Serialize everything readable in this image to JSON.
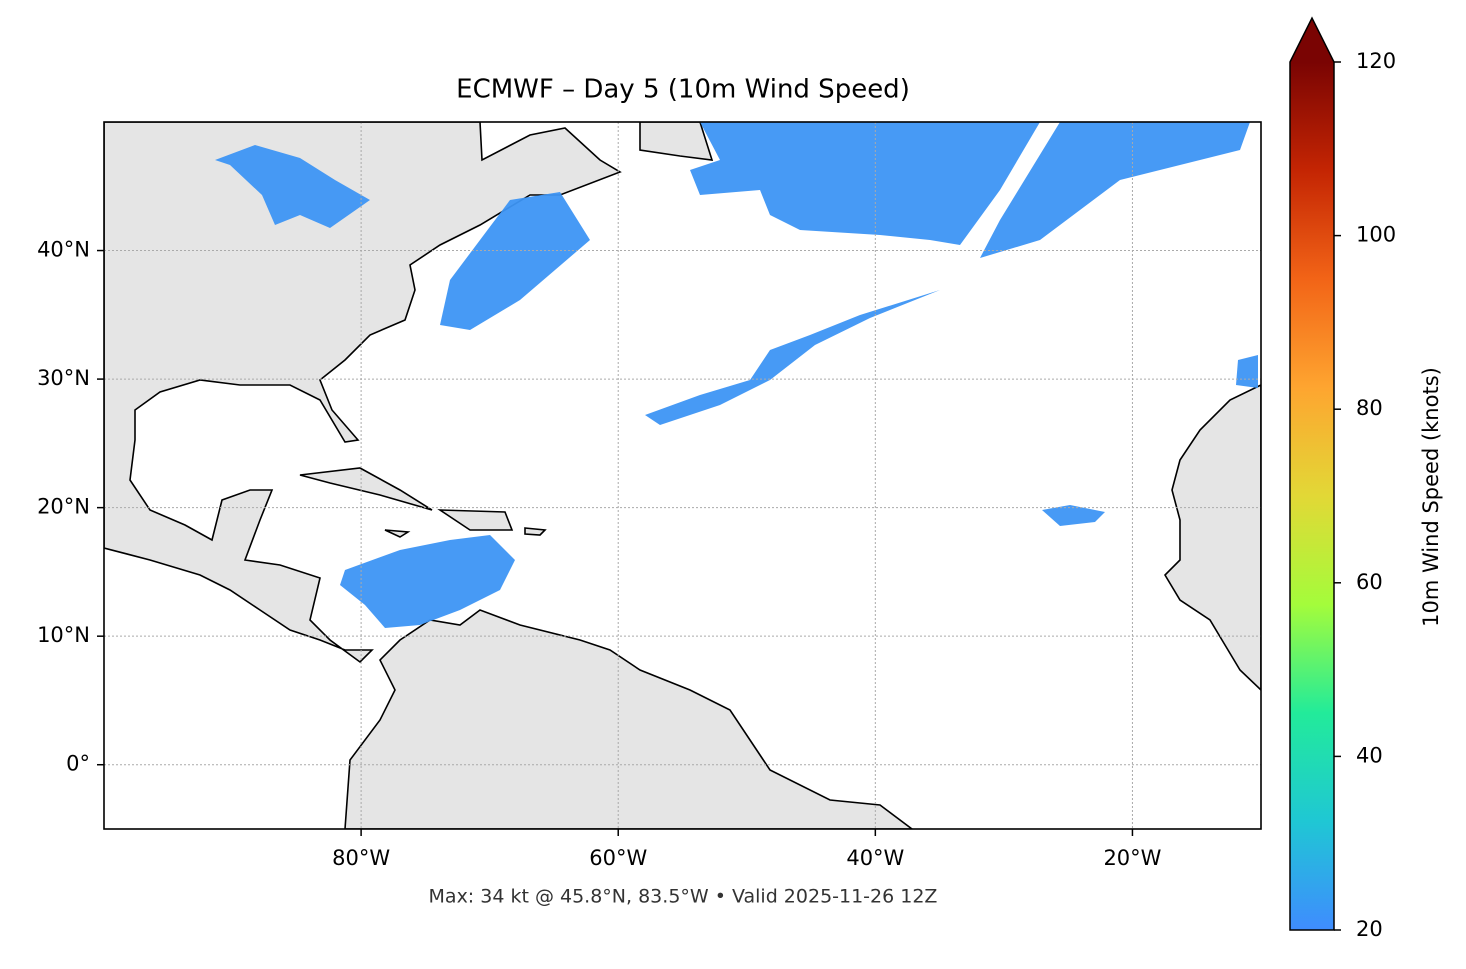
{
  "map": {
    "title": "ECMWF – Day 5 (10m Wind Speed)",
    "footer": "Max: 34 kt @ 45.8°N, 83.5°W • Valid 2025-11-26 12Z",
    "xlim": [
      -100,
      -10
    ],
    "ylim": [
      -5,
      50
    ],
    "xticks": [
      {
        "value": -80,
        "label": "80°W"
      },
      {
        "value": -60,
        "label": "60°W"
      },
      {
        "value": -40,
        "label": "40°W"
      },
      {
        "value": -20,
        "label": "20°W"
      }
    ],
    "yticks": [
      {
        "value": 0,
        "label": "0°"
      },
      {
        "value": 10,
        "label": "10°N"
      },
      {
        "value": 20,
        "label": "20°N"
      },
      {
        "value": 30,
        "label": "30°N"
      },
      {
        "value": 40,
        "label": "40°N"
      }
    ],
    "grid": true,
    "colorbar": {
      "label": "10m Wind Speed (knots)",
      "lim": [
        20,
        120
      ],
      "ticks": [
        20,
        40,
        60,
        80,
        100,
        120
      ],
      "colors": [
        "#3f8cff",
        "#1fc7d4",
        "#22eb9a",
        "#a4fc3b",
        "#e2d836",
        "#fea530",
        "#f26417",
        "#c42503",
        "#7a0403"
      ],
      "extend_color": "#7a0403"
    }
  }
}
